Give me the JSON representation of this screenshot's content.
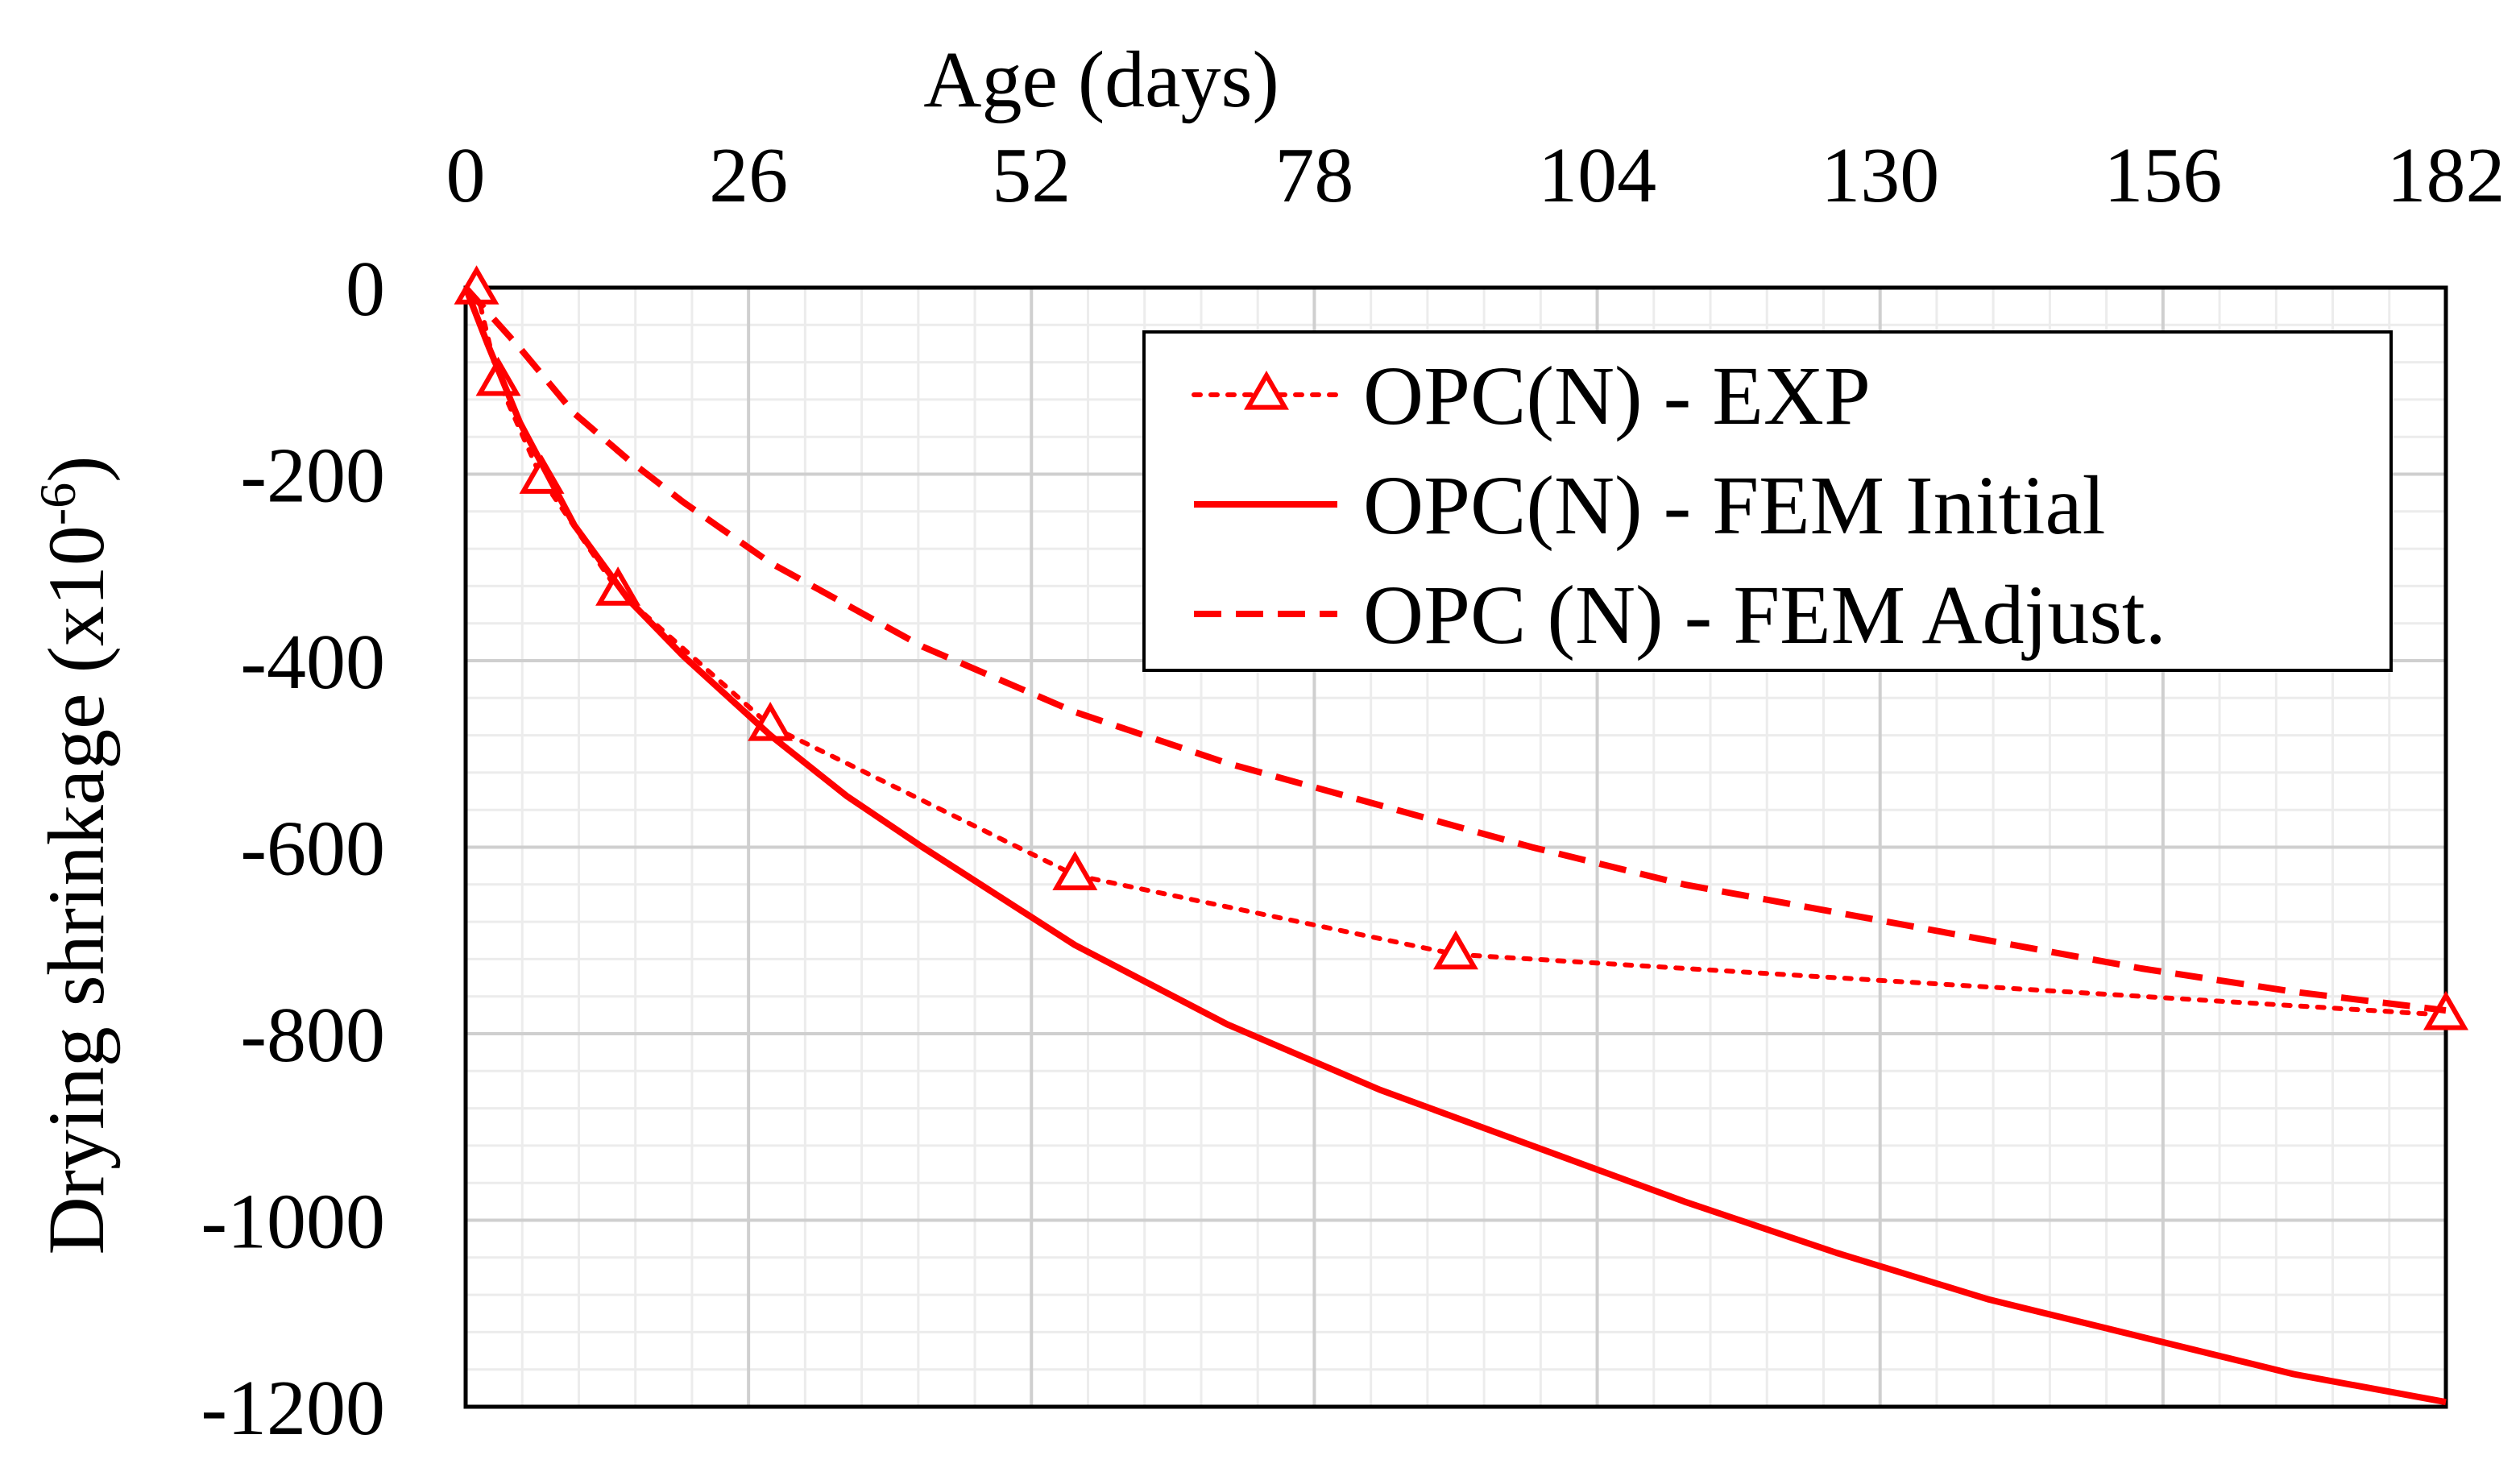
{
  "chart_data": {
    "type": "line",
    "title": "",
    "xlabel": "Age (days)",
    "ylabel": "Drying shrinkage (x10",
    "ylabel_superscript": "-6",
    "ylabel_close": ")",
    "x_axis_position": "top",
    "xlim": [
      0,
      182
    ],
    "ylim": [
      -1200,
      0
    ],
    "x_ticks": [
      0,
      26,
      52,
      78,
      104,
      130,
      156,
      182
    ],
    "x_tick_labels": [
      "0",
      "26",
      "52",
      "78",
      "104",
      "130",
      "156",
      "182"
    ],
    "y_ticks": [
      0,
      -200,
      -400,
      -600,
      -800,
      -1000,
      -1200
    ],
    "y_tick_labels": [
      "0",
      "-200",
      "-400",
      "-600",
      "-800",
      "-1000",
      "-1200"
    ],
    "grid": true,
    "minor_grid": true,
    "legend_position": "top-right",
    "series": [
      {
        "name": "OPC(N) - EXP",
        "style": "dotted",
        "marker": "triangle",
        "color": "#ff0000",
        "x": [
          1,
          3,
          7,
          14,
          28,
          56,
          91,
          182
        ],
        "y": [
          -2,
          -100,
          -205,
          -325,
          -470,
          -630,
          -715,
          -780
        ]
      },
      {
        "name": "OPC(N) - FEM Initial",
        "style": "solid",
        "marker": "none",
        "color": "#ff0000",
        "x": [
          0,
          2,
          5,
          10,
          15,
          20,
          28,
          35,
          42,
          56,
          70,
          84,
          98,
          112,
          126,
          140,
          154,
          168,
          182
        ],
        "y": [
          0,
          -60,
          -145,
          -255,
          -335,
          -395,
          -480,
          -545,
          -600,
          -705,
          -790,
          -860,
          -920,
          -980,
          -1035,
          -1085,
          -1125,
          -1165,
          -1195
        ]
      },
      {
        "name": "OPC (N) - FEM Adjust.",
        "style": "dashed",
        "marker": "none",
        "color": "#ff0000",
        "x": [
          0,
          5,
          10,
          15,
          20,
          28,
          42,
          56,
          70,
          84,
          98,
          112,
          126,
          140,
          154,
          168,
          182
        ],
        "y": [
          0,
          -65,
          -135,
          -185,
          -230,
          -295,
          -385,
          -455,
          -510,
          -555,
          -600,
          -640,
          -670,
          -700,
          -730,
          -755,
          -775
        ]
      }
    ]
  }
}
